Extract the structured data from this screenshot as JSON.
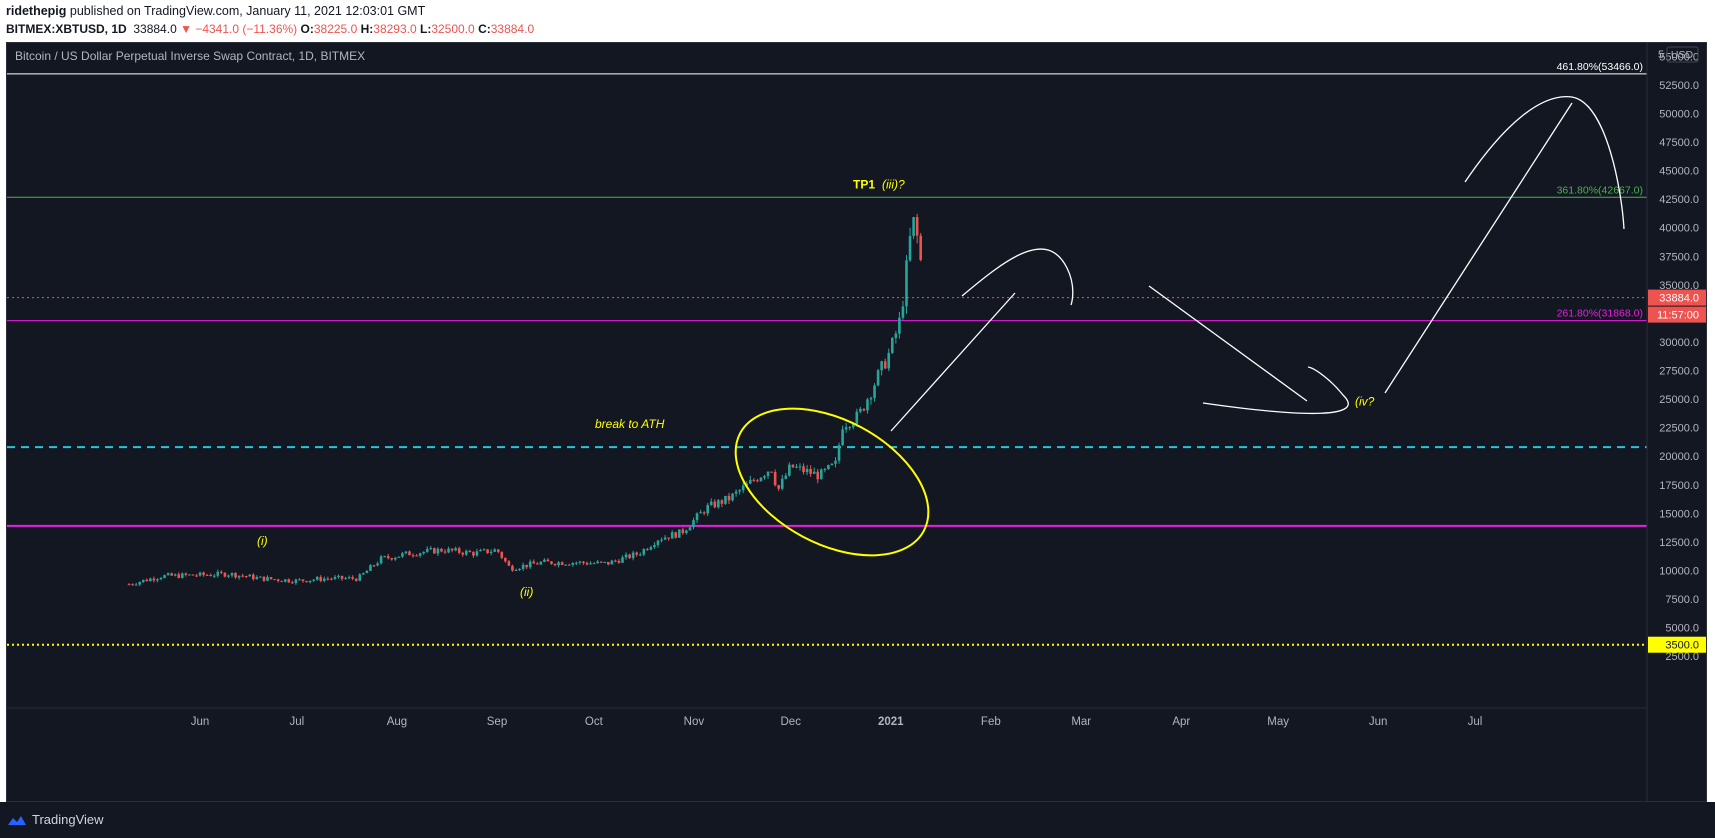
{
  "header": {
    "author": "ridethepig",
    "published_text": "published on TradingView.com, January 11, 2021 12:03:01 GMT",
    "symbol": "BITMEX:XBTUSD, 1D",
    "last": "33884.0",
    "change": "▼ −4341.0 (−11.36%)",
    "o_label": "O:",
    "o_value": "38225.0",
    "h_label": "H:",
    "h_value": "38293.0",
    "l_label": "L:",
    "l_value": "32500.0",
    "c_label": "C:",
    "c_value": "33884.0"
  },
  "chart_data": {
    "type": "candlestick",
    "title": "Bitcoin / US Dollar Perpetual Inverse Swap Contract, 1D, BITMEX",
    "currency": "USD",
    "y_axis_label_partial": "5",
    "ylim": [
      0,
      57000
    ],
    "y_ticks": [
      2500,
      5000,
      7500,
      10000,
      12500,
      15000,
      17500,
      20000,
      22500,
      25000,
      27500,
      30000,
      35000,
      37500,
      40000,
      42500,
      45000,
      47500,
      50000,
      52500,
      55000
    ],
    "y_tick_labels": [
      "2500.0",
      "5000.0",
      "7500.0",
      "10000.0",
      "12500.0",
      "15000.0",
      "17500.0",
      "20000.0",
      "22500.0",
      "25000.0",
      "27500.0",
      "30000.0",
      "35000.0",
      "37500.0",
      "40000.0",
      "42500.0",
      "45000.0",
      "47500.0",
      "50000.0",
      "52500.0",
      "55000.0"
    ],
    "x_labels": [
      "Jun",
      "Jul",
      "Aug",
      "Sep",
      "Oct",
      "Nov",
      "Dec",
      "2021",
      "Feb",
      "Mar",
      "Apr",
      "May",
      "Jun",
      "Jul"
    ],
    "x_label_bold": "2021",
    "grid": false,
    "price_marker": {
      "value": 33884,
      "label": "33884.0",
      "countdown": "11:57:00",
      "color": "#ef5350"
    },
    "yellow_marker": {
      "value": 3500,
      "label": "3500.0",
      "color": "#ffff00"
    },
    "horizontal_lines": [
      {
        "value": 53466,
        "color": "#ffffff",
        "style": "solid",
        "label": "461.80%(53466.0)"
      },
      {
        "value": 42667,
        "color": "#4caf50",
        "style": "solid",
        "label": "361.80%(42667.0)"
      },
      {
        "value": 33884,
        "color": "#ef5350",
        "style": "dotted",
        "label": ""
      },
      {
        "value": 31868,
        "color": "#e91ee0",
        "style": "solid",
        "label": "261.80%(31868.0)"
      },
      {
        "value": 20800,
        "color": "#26c6da",
        "style": "dashed",
        "label": ""
      },
      {
        "value": 13900,
        "color": "#e91ee0",
        "style": "solid-thick",
        "label": ""
      },
      {
        "value": 3500,
        "color": "#ffff00",
        "style": "dotted",
        "label": ""
      }
    ],
    "annotations": [
      {
        "text": "TP1",
        "value": 43800,
        "style": "bold"
      },
      {
        "text": "(iii)?",
        "value": 43800,
        "style": "italic"
      },
      {
        "text": "break to ATH",
        "value": 22800,
        "style": "italic"
      },
      {
        "text": "(i)",
        "value": 12600,
        "style": "italic"
      },
      {
        "text": "(ii)",
        "value": 8100,
        "style": "italic"
      },
      {
        "text": "(iv?",
        "value": 24800,
        "style": "italic"
      }
    ],
    "series": [
      {
        "name": "XBTUSD daily close (approx.)",
        "x": [
          "2020-05-10",
          "2020-05-20",
          "2020-06-01",
          "2020-06-10",
          "2020-06-20",
          "2020-07-01",
          "2020-07-10",
          "2020-07-20",
          "2020-07-27",
          "2020-08-05",
          "2020-08-15",
          "2020-08-25",
          "2020-09-01",
          "2020-09-05",
          "2020-09-15",
          "2020-09-25",
          "2020-10-05",
          "2020-10-15",
          "2020-10-21",
          "2020-10-28",
          "2020-11-05",
          "2020-11-12",
          "2020-11-20",
          "2020-11-25",
          "2020-11-27",
          "2020-12-01",
          "2020-12-10",
          "2020-12-15",
          "2020-12-17",
          "2020-12-22",
          "2020-12-27",
          "2021-01-01",
          "2021-01-04",
          "2021-01-07",
          "2021-01-08",
          "2021-01-10",
          "2021-01-11"
        ],
        "values": [
          8800,
          9500,
          9600,
          9700,
          9300,
          9100,
          9300,
          9300,
          11000,
          11500,
          11800,
          11500,
          11800,
          10200,
          10700,
          10700,
          10600,
          11500,
          12800,
          13300,
          15500,
          16300,
          18000,
          19000,
          17000,
          19100,
          18300,
          19300,
          22800,
          23500,
          26400,
          29300,
          32000,
          39000,
          40500,
          38200,
          33884
        ]
      }
    ],
    "drawings": [
      {
        "type": "ellipse",
        "color": "#ffff00"
      },
      {
        "type": "projection-path",
        "color": "#ffffff"
      }
    ]
  },
  "footer": {
    "brand": "TradingView"
  }
}
